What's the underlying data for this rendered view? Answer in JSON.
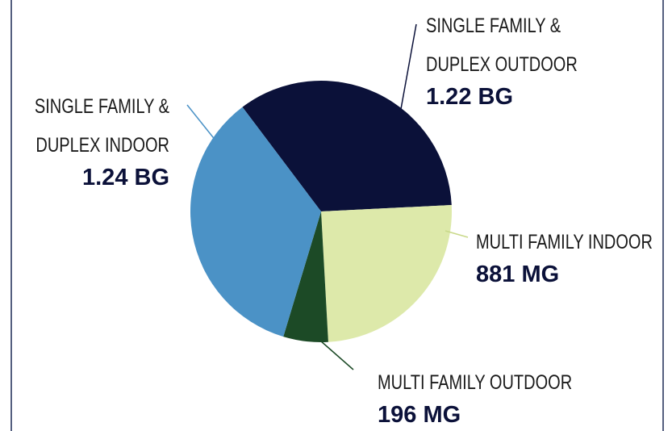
{
  "chart_data": {
    "type": "pie",
    "categories": [
      "SINGLE FAMILY & DUPLEX OUTDOOR",
      "MULTI FAMILY INDOOR",
      "MULTI FAMILY OUTDOOR",
      "SINGLE FAMILY & DUPLEX INDOOR"
    ],
    "values": [
      1220,
      881,
      196,
      1240
    ],
    "value_labels": [
      "1.22 BG",
      "881 MG",
      "196 MG",
      "1.24 BG"
    ],
    "colors": [
      "#0b1139",
      "#dde9aa",
      "#1c4a26",
      "#4b92c6"
    ]
  }
}
